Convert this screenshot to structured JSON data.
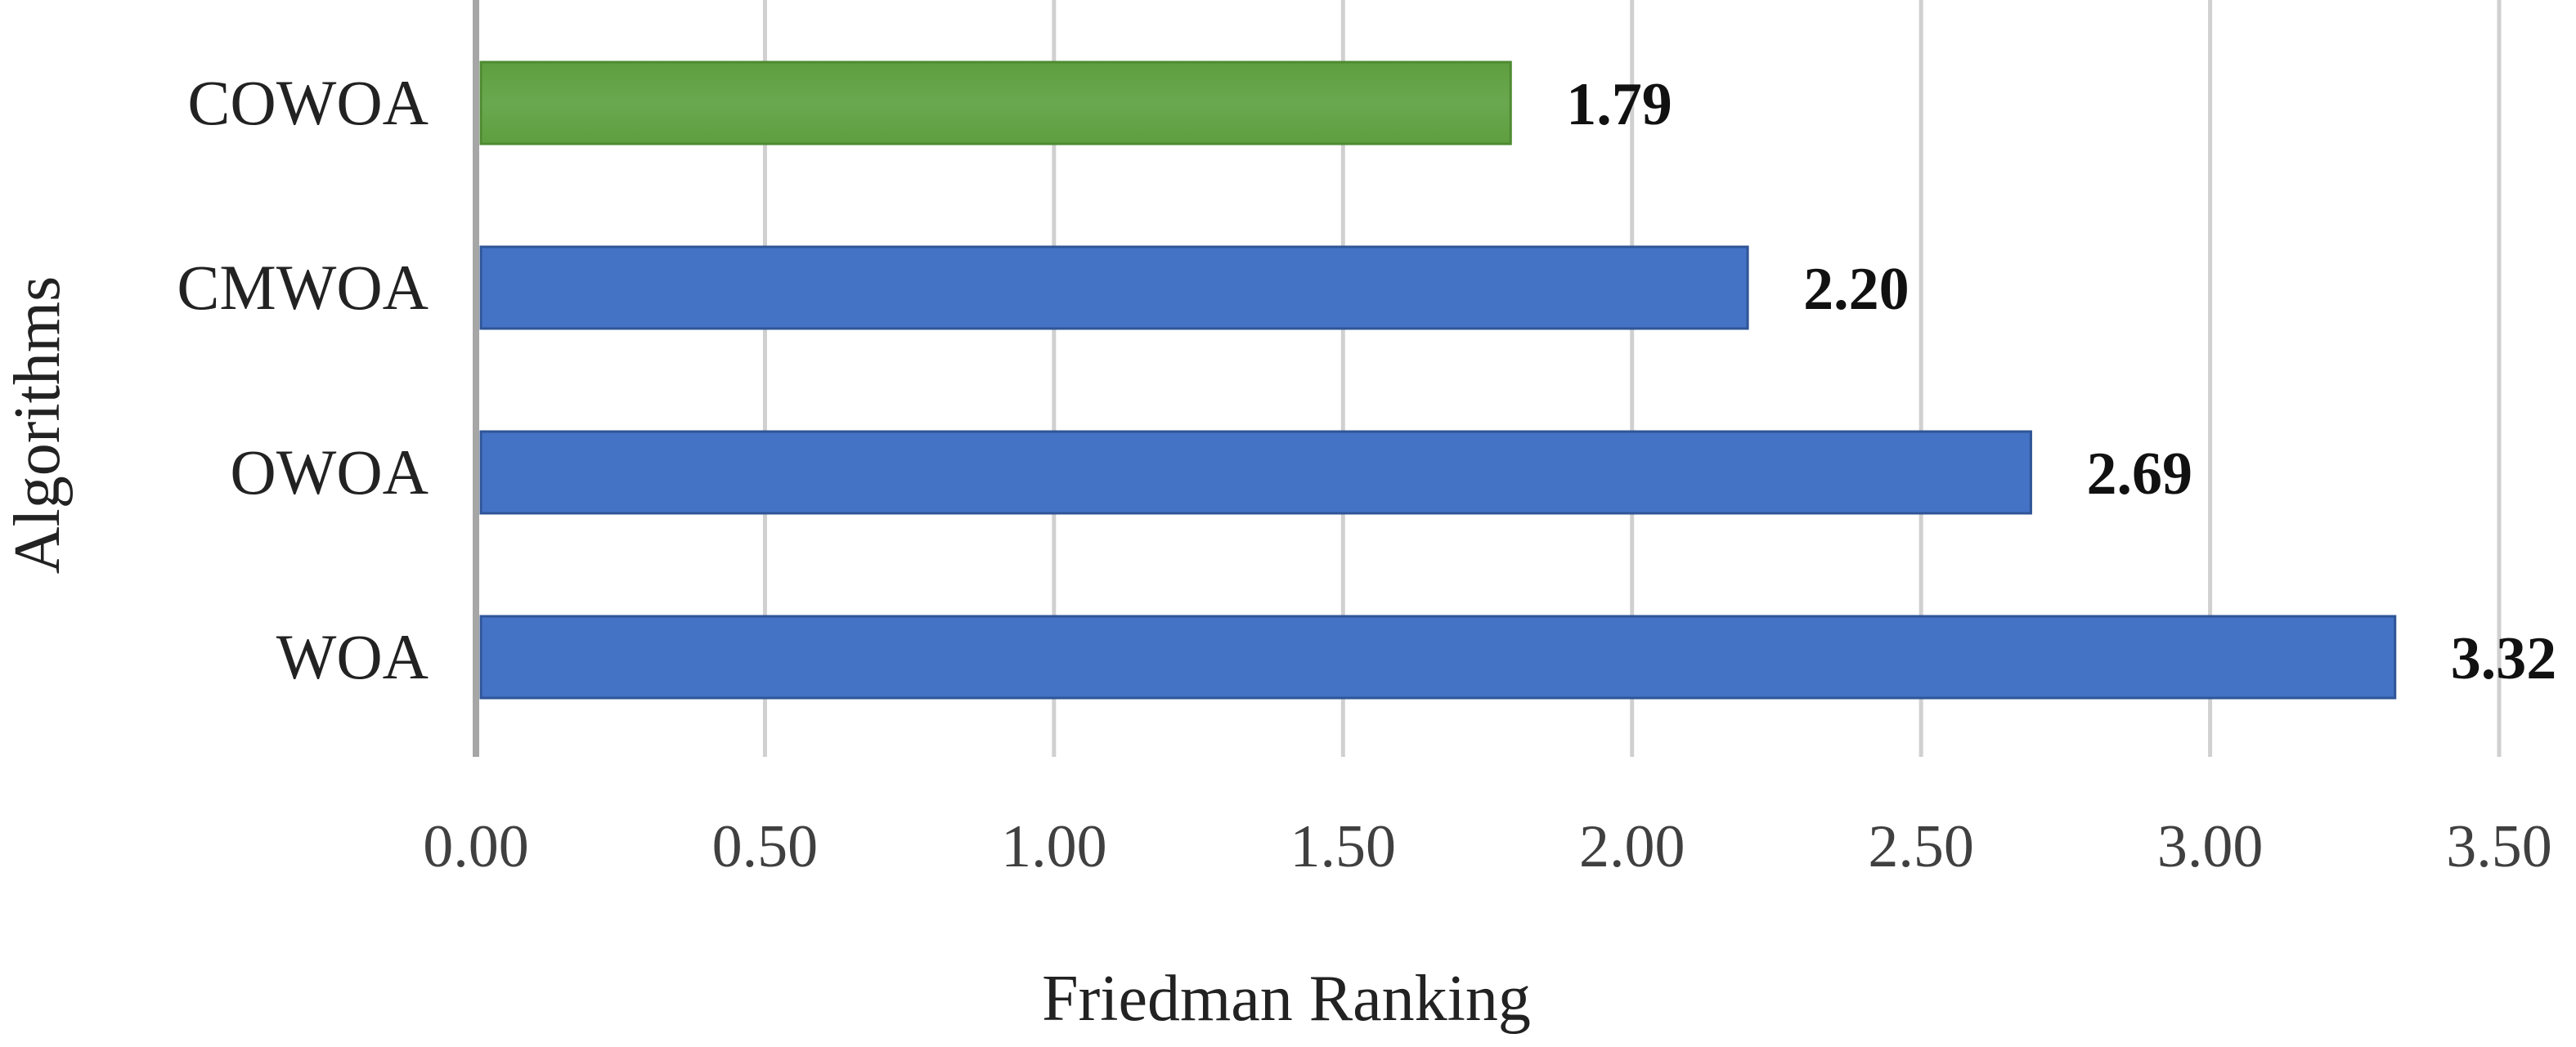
{
  "chart_data": {
    "type": "bar",
    "orientation": "horizontal",
    "categories": [
      "COWOA",
      "CMWOA",
      "OWOA",
      "WOA"
    ],
    "values": [
      1.79,
      2.2,
      2.69,
      3.32
    ],
    "value_labels": [
      "1.79",
      "2.20",
      "2.69",
      "3.32"
    ],
    "bar_colors": [
      "#6aa84f",
      "#4472c4",
      "#4472c4",
      "#4472c4"
    ],
    "highlight_color": "#6aa84f",
    "default_color": "#4472c4",
    "xlabel": "Friedman Ranking",
    "ylabel": "Algorithms",
    "xlim": [
      0,
      3.5
    ],
    "xticks": [
      "0.00",
      "0.50",
      "1.00",
      "1.50",
      "2.00",
      "2.50",
      "3.00",
      "3.50"
    ],
    "grid": "vertical",
    "legend": "none"
  }
}
